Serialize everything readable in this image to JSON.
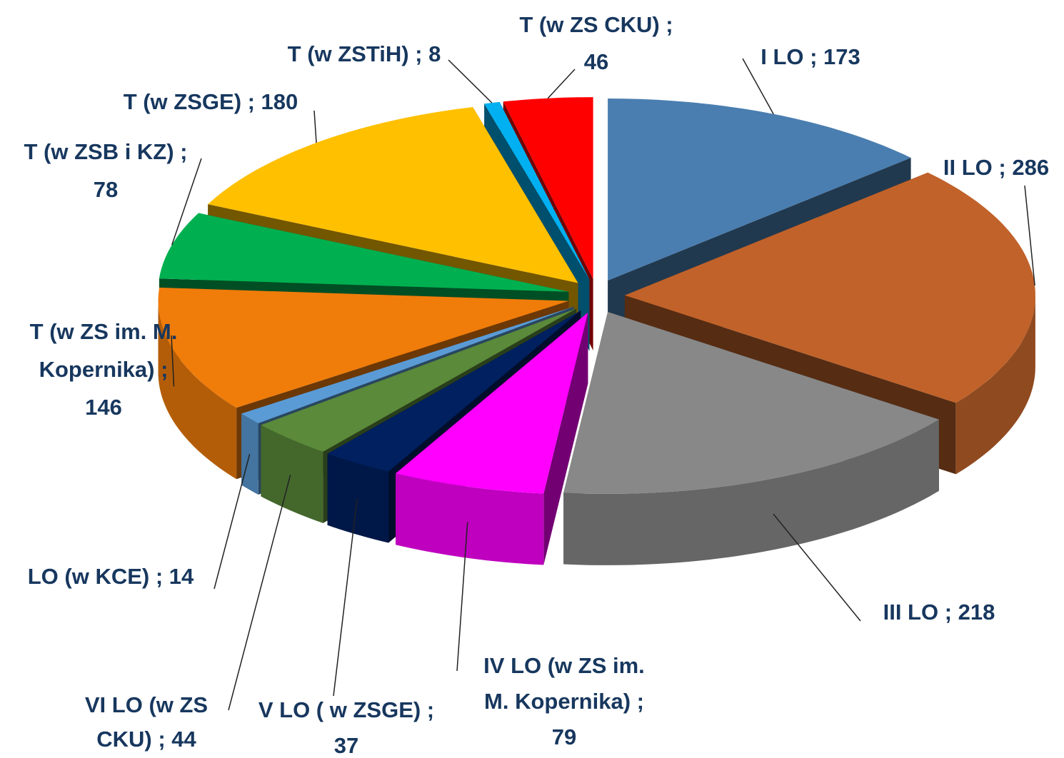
{
  "chart_data": {
    "type": "pie3d",
    "values": [
      173,
      286,
      218,
      79,
      37,
      44,
      14,
      146,
      78,
      180,
      8,
      46
    ],
    "value_labels": [
      "I LO ; 173",
      "II LO ; 286",
      "III LO ; 218",
      "IV LO (w ZS im.\nM. Kopernika) ;\n79",
      "V LO ( w ZSGE) ;\n37",
      "VI LO (w ZS\nCKU) ; 44",
      "LO (w KCE) ; 14",
      "T (w ZS im. M.\nKopernika) ;\n146",
      "T (w ZSB i KZ) ;\n78",
      "T (w ZSGE) ; 180",
      "T (w ZSTiH) ; 8",
      "T (w ZS CKU) ;\n46"
    ],
    "colors": [
      "#4a7eb0",
      "#c0622a",
      "#888888",
      "#ff00ff",
      "#002060",
      "#5a8a3a",
      "#5b9bd5",
      "#f07c0a",
      "#00b050",
      "#ffc000",
      "#00b0f0",
      "#ff0000"
    ]
  }
}
